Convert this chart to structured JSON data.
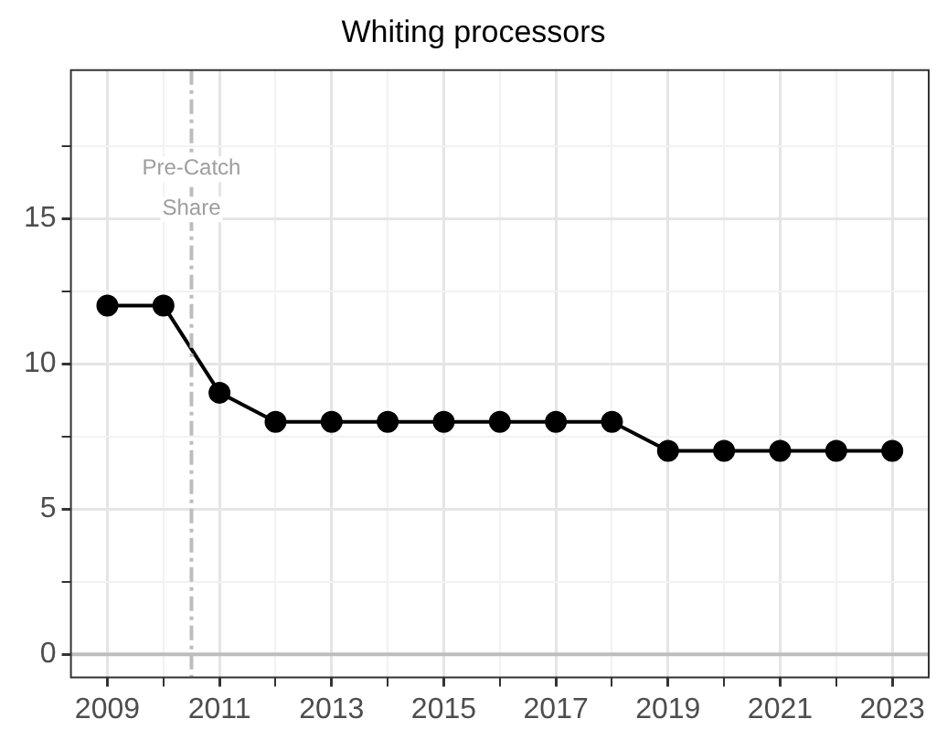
{
  "chart_data": {
    "type": "line",
    "title": "Whiting processors",
    "x": [
      2009,
      2010,
      2011,
      2012,
      2013,
      2014,
      2015,
      2016,
      2017,
      2018,
      2019,
      2020,
      2021,
      2022,
      2023
    ],
    "series": [
      {
        "color": "#000000",
        "values": [
          12,
          12,
          9,
          8,
          8,
          8,
          8,
          8,
          8,
          8,
          7,
          7,
          7,
          7,
          7
        ]
      }
    ],
    "xlim": [
      2008.35,
      2023.65
    ],
    "ylim": [
      -0.8,
      20.1
    ],
    "xticks": [
      2009,
      {
        "value": 2010,
        "label": null
      },
      2011,
      {
        "value": 2012,
        "label": null
      },
      2013,
      {
        "value": 2014,
        "label": null
      },
      2015,
      {
        "value": 2016,
        "label": null
      },
      2017,
      {
        "value": 2018,
        "label": null
      },
      2019,
      {
        "value": 2020,
        "label": null
      },
      2021,
      {
        "value": 2022,
        "label": null
      },
      2023
    ],
    "yticks": [
      0,
      {
        "value": 2.5,
        "label": null
      },
      5,
      {
        "value": 7.5,
        "label": null
      },
      10,
      {
        "value": 12.5,
        "label": null
      },
      15,
      {
        "value": 17.5,
        "label": null
      }
    ],
    "ref_lines": [
      {
        "axis": "x",
        "value": 2010.5,
        "label": "Pre-Catch Share",
        "color": "#bdbdbd",
        "line_style": "dashdot"
      },
      {
        "axis": "y",
        "value": 0,
        "label": null,
        "color": "#bdbdbd",
        "line_style": "solid"
      }
    ],
    "grid": true,
    "legend": false,
    "marker": "circle",
    "line_style": "solid"
  }
}
